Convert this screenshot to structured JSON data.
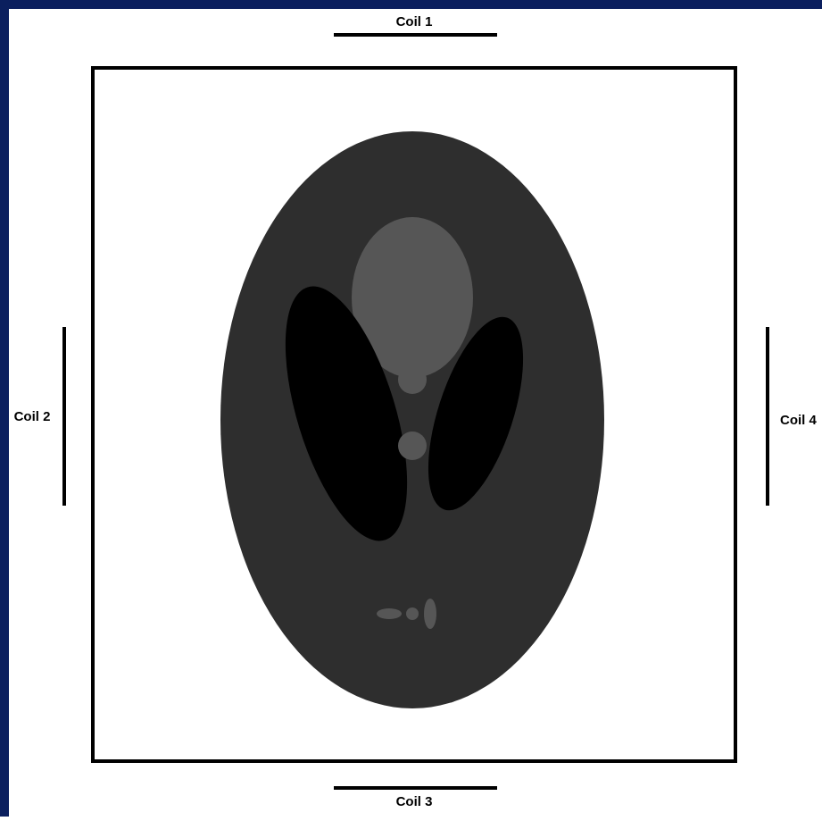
{
  "coils": [
    {
      "label": "Coil 1"
    },
    {
      "label": "Coil 2"
    },
    {
      "label": "Coil 3"
    },
    {
      "label": "Coil 4"
    }
  ]
}
